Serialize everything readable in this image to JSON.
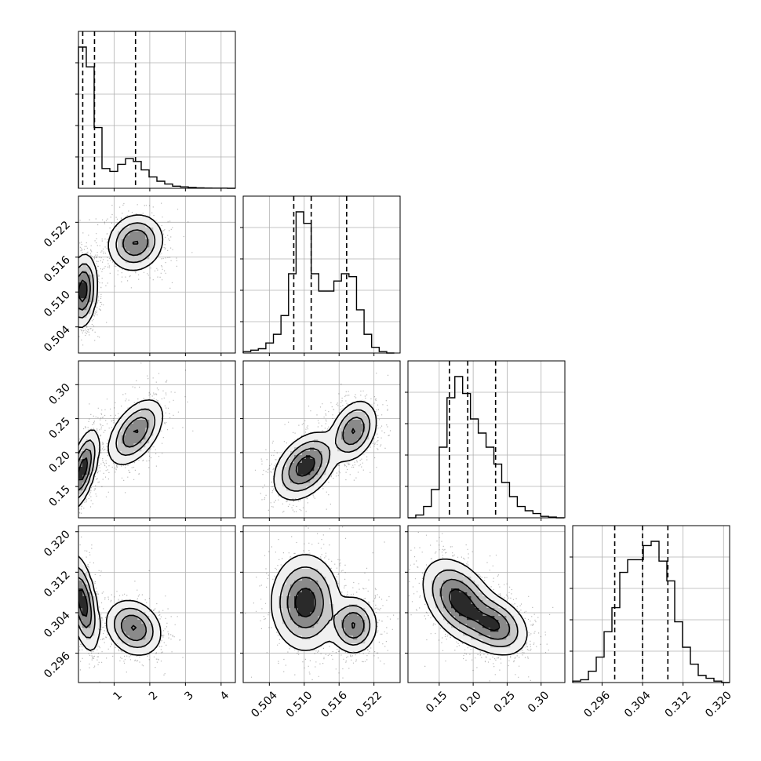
{
  "chart_data": {
    "type": "corner",
    "title": "",
    "params": [
      {
        "xlim": [
          0.0,
          4.4
        ],
        "quantiles": [
          0.12,
          0.45,
          1.6
        ],
        "xticks": [
          1,
          2,
          3,
          4
        ],
        "xtick_labels": [
          "1",
          "2",
          "3",
          "4"
        ]
      },
      {
        "xlim": [
          0.4995,
          0.5265
        ],
        "quantiles": [
          0.5082,
          0.5112,
          0.5173
        ],
        "xticks": [
          0.504,
          0.51,
          0.516,
          0.522
        ],
        "xtick_labels": [
          "0.504",
          "0.510",
          "0.516",
          "0.522"
        ]
      },
      {
        "xlim": [
          0.104,
          0.335
        ],
        "quantiles": [
          0.165,
          0.192,
          0.233
        ],
        "xticks": [
          0.15,
          0.2,
          0.25,
          0.3
        ],
        "xtick_labels": [
          "0.15",
          "0.20",
          "0.25",
          "0.30"
        ]
      },
      {
        "xlim": [
          0.2902,
          0.3212
        ],
        "quantiles": [
          0.2985,
          0.304,
          0.309
        ],
        "xticks": [
          0.296,
          0.304,
          0.312,
          0.32
        ],
        "xtick_labels": [
          "0.296",
          "0.304",
          "0.312",
          "0.320"
        ]
      }
    ],
    "histograms": [
      {
        "bin_width": 0.22,
        "counts": [
          1.0,
          0.86,
          0.43,
          0.14,
          0.12,
          0.17,
          0.21,
          0.19,
          0.13,
          0.08,
          0.05,
          0.03,
          0.015,
          0.01,
          0.006,
          0.003,
          0.002,
          0.001,
          0.001,
          0.0
        ]
      },
      {
        "bin_width": 0.0013,
        "counts": [
          0.01,
          0.02,
          0.03,
          0.07,
          0.13,
          0.26,
          0.55,
          0.98,
          0.9,
          0.55,
          0.43,
          0.43,
          0.5,
          0.55,
          0.53,
          0.3,
          0.13,
          0.04,
          0.01,
          0.0
        ]
      },
      {
        "bin_width": 0.0115,
        "counts": [
          0.0,
          0.02,
          0.08,
          0.2,
          0.5,
          0.85,
          1.0,
          0.88,
          0.7,
          0.6,
          0.5,
          0.38,
          0.25,
          0.15,
          0.08,
          0.05,
          0.03,
          0.01,
          0.005,
          0.0
        ]
      },
      {
        "bin_width": 0.00155,
        "counts": [
          0.01,
          0.02,
          0.08,
          0.18,
          0.36,
          0.53,
          0.78,
          0.87,
          0.87,
          0.97,
          1.0,
          0.86,
          0.72,
          0.43,
          0.25,
          0.13,
          0.05,
          0.03,
          0.01,
          0.0
        ]
      }
    ],
    "pairs": [
      {
        "row": 1,
        "col": 0,
        "modes": [
          {
            "x": 0.12,
            "y": 0.5102,
            "sx": 0.18,
            "sy": 0.0028,
            "rho": 0.15,
            "w": 0.55
          },
          {
            "x": 1.6,
            "y": 0.5185,
            "sx": 0.35,
            "sy": 0.0022,
            "rho": 0.1,
            "w": 0.45
          }
        ]
      },
      {
        "row": 2,
        "col": 0,
        "modes": [
          {
            "x": 0.12,
            "y": 0.175,
            "sx": 0.2,
            "sy": 0.026,
            "rho": 0.6,
            "w": 0.55
          },
          {
            "x": 1.6,
            "y": 0.23,
            "sx": 0.35,
            "sy": 0.022,
            "rho": 0.5,
            "w": 0.45
          }
        ]
      },
      {
        "row": 2,
        "col": 1,
        "modes": [
          {
            "x": 0.5102,
            "y": 0.18,
            "sx": 0.0024,
            "sy": 0.022,
            "rho": 0.4,
            "w": 0.55
          },
          {
            "x": 0.5185,
            "y": 0.232,
            "sx": 0.0018,
            "sy": 0.02,
            "rho": 0.3,
            "w": 0.45
          }
        ]
      },
      {
        "row": 3,
        "col": 0,
        "modes": [
          {
            "x": 0.12,
            "y": 0.306,
            "sx": 0.2,
            "sy": 0.0042,
            "rho": -0.5,
            "w": 0.55
          },
          {
            "x": 1.55,
            "y": 0.301,
            "sx": 0.35,
            "sy": 0.0025,
            "rho": -0.2,
            "w": 0.45
          }
        ]
      },
      {
        "row": 3,
        "col": 1,
        "modes": [
          {
            "x": 0.5102,
            "y": 0.306,
            "sx": 0.0026,
            "sy": 0.0042,
            "rho": 0.0,
            "w": 0.55
          },
          {
            "x": 0.5185,
            "y": 0.3015,
            "sx": 0.0018,
            "sy": 0.0025,
            "rho": 0.0,
            "w": 0.45
          }
        ]
      },
      {
        "row": 3,
        "col": 2,
        "modes": [
          {
            "x": 0.18,
            "y": 0.3063,
            "sx": 0.024,
            "sy": 0.0037,
            "rho": -0.4,
            "w": 0.55
          },
          {
            "x": 0.232,
            "y": 0.3015,
            "sx": 0.022,
            "sy": 0.0027,
            "rho": -0.3,
            "w": 0.45
          }
        ]
      }
    ],
    "grid": true,
    "contour_levels": [
      0.08,
      0.25,
      0.5,
      0.8
    ]
  }
}
